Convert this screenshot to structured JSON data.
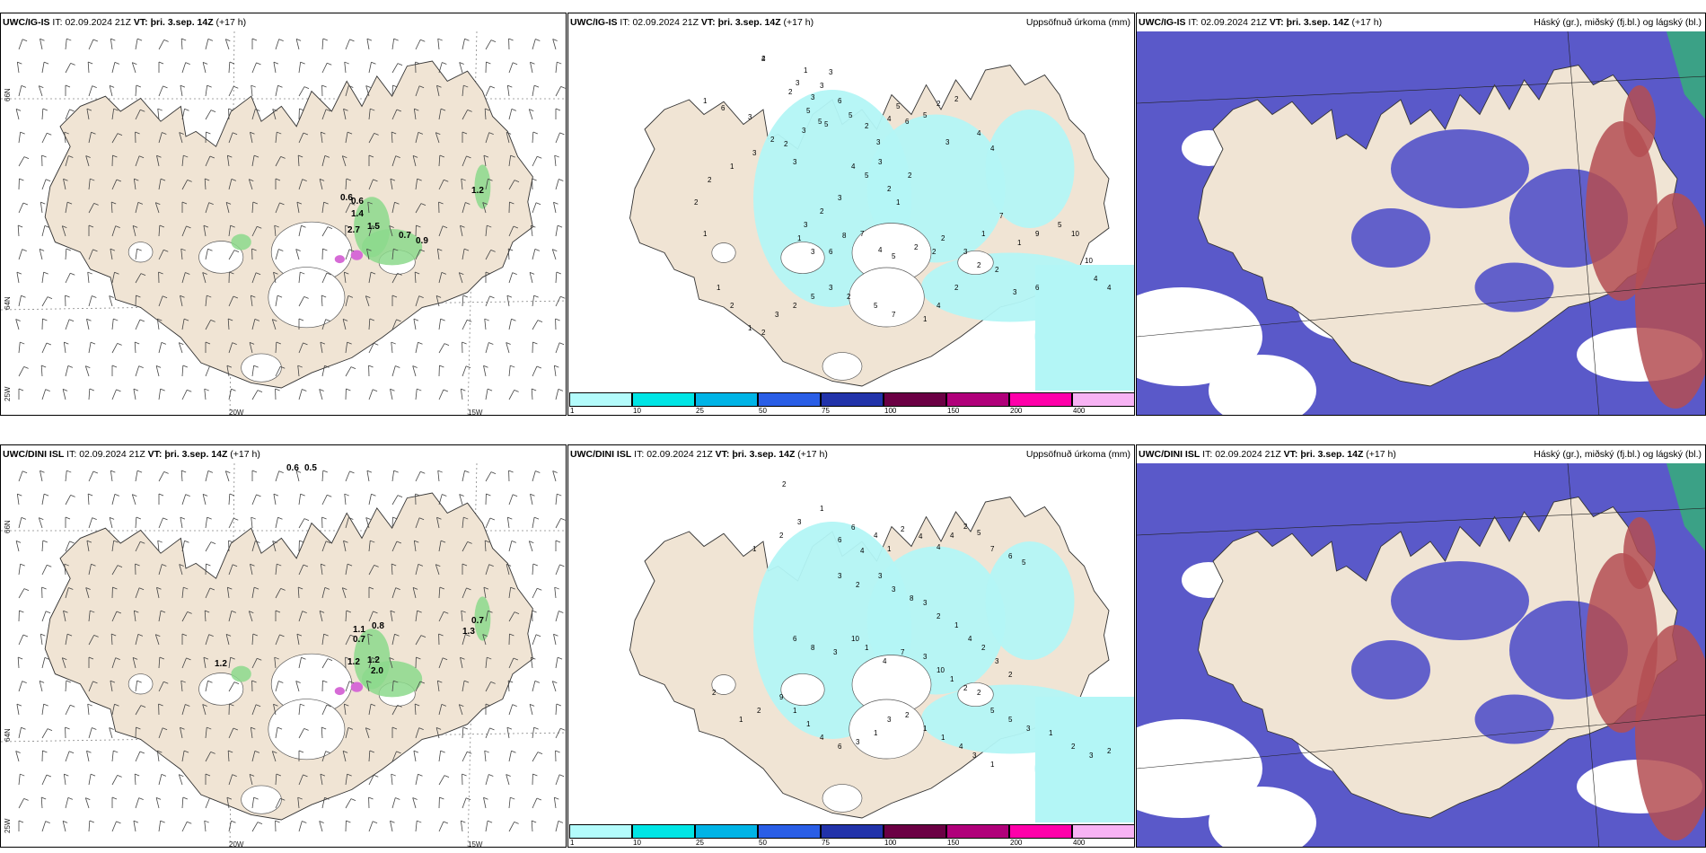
{
  "colors": {
    "land": "#f0e4d4",
    "sea": "#ffffff",
    "precip_light": "#b3f6f6",
    "cloud_high": "#5a59c9",
    "cloud_low": "#b44e52",
    "cloud_mid": "#37a87e",
    "wind_green": "#8cd98c",
    "wind_magenta": "#d66bd6"
  },
  "rows": [
    {
      "model": "UWC/IG-IS",
      "it_label": "IT:",
      "it_value": "02.09.2024 21Z",
      "vt_label": "VT:",
      "vt_value": "þri. 3.sep. 14Z",
      "lead": "(+17 h)"
    },
    {
      "model": "UWC/DINI ISL",
      "it_label": "IT:",
      "it_value": "02.09.2024 21Z",
      "vt_label": "VT:",
      "vt_value": "þri. 3.sep. 14Z",
      "lead": "(+17 h)"
    }
  ],
  "panel_titles": {
    "precip": "Uppsöfnuð úrkoma (mm)",
    "cloud": "Háský (gr.), miðský (fj.bl.) og lágský (bl.)"
  },
  "axis_labels": {
    "lat66": "66N",
    "lat64": "64N",
    "lon25": "25W",
    "lon20": "20W",
    "lon15": "15W"
  },
  "colorbar": {
    "values": [
      "1",
      "10",
      "25",
      "50",
      "75",
      "100",
      "150",
      "200",
      "400"
    ],
    "colors": [
      "#b3fbfb",
      "#00e5e5",
      "#00b4e6",
      "#2a5ee6",
      "#2233aa",
      "#6b0044",
      "#b0007a",
      "#ff00aa",
      "#f7b3f4"
    ]
  },
  "wind_gusts": {
    "top": [
      "0.6",
      "0.6",
      "1.4",
      "2.7",
      "1.5",
      "0.7",
      "0.9",
      "1.2"
    ],
    "bottom": [
      "0.6",
      "0.5",
      "1.1",
      "0.7",
      "0.8",
      "1.2",
      "1.2",
      "2.0",
      "0.7",
      "1.3",
      "1.2"
    ]
  },
  "precip_numbers": {
    "top": [
      "4",
      "1",
      "3",
      "3",
      "3",
      "2",
      "3",
      "5",
      "5",
      "6",
      "5",
      "5",
      "3",
      "2",
      "3",
      "2",
      "3",
      "4",
      "5",
      "6",
      "5",
      "2",
      "2",
      "3",
      "4",
      "4",
      "4",
      "5",
      "3",
      "2",
      "1",
      "2",
      "3",
      "2",
      "3",
      "1",
      "3",
      "6",
      "8",
      "7",
      "4",
      "5",
      "2",
      "2",
      "2",
      "3",
      "1",
      "7",
      "1",
      "9",
      "5",
      "10",
      "10",
      "4",
      "4",
      "6",
      "3",
      "2",
      "2",
      "2",
      "4",
      "1",
      "7",
      "5",
      "2",
      "3",
      "5",
      "2",
      "3",
      "2",
      "1",
      "2",
      "1",
      "1",
      "2",
      "2",
      "1",
      "3",
      "2",
      "3",
      "6",
      "1",
      "2"
    ],
    "bottom": [
      "2",
      "1",
      "3",
      "2",
      "1",
      "6",
      "6",
      "4",
      "4",
      "1",
      "2",
      "4",
      "4",
      "4",
      "2",
      "5",
      "7",
      "6",
      "5",
      "3",
      "2",
      "3",
      "3",
      "8",
      "3",
      "2",
      "1",
      "4",
      "2",
      "3",
      "2",
      "6",
      "8",
      "3",
      "10",
      "1",
      "4",
      "7",
      "3",
      "10",
      "1",
      "2",
      "2",
      "5",
      "5",
      "3",
      "1",
      "2",
      "3",
      "2",
      "1",
      "1",
      "4",
      "6",
      "3",
      "1",
      "3",
      "2",
      "1",
      "1",
      "4",
      "3",
      "1",
      "9",
      "2",
      "1",
      "2"
    ]
  }
}
